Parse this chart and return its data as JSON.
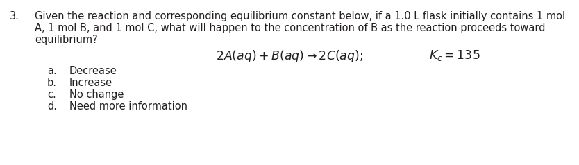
{
  "question_number": "3.",
  "question_line1": "Given the reaction and corresponding equilibrium constant below, if a 1.0 L flask initially contains 1 mol",
  "question_line2": "A, 1 mol B, and 1 mol C, what will happen to the concentration of B as the reaction proceeds toward",
  "question_line3": "equilibrium?",
  "options": [
    {
      "label": "a.",
      "text": "Decrease"
    },
    {
      "label": "b.",
      "text": "Increase"
    },
    {
      "label": "c.",
      "text": "No change"
    },
    {
      "label": "d.",
      "text": "Need more information"
    }
  ],
  "bg_color": "#ffffff",
  "text_color": "#231f20",
  "font_size": 10.5,
  "eq_font_size": 12.5
}
